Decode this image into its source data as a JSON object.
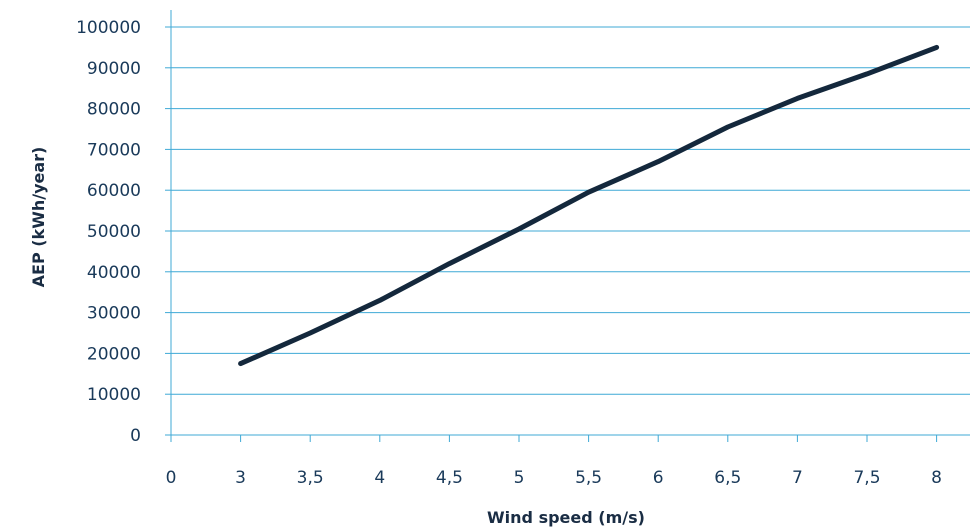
{
  "chart_data": {
    "type": "line",
    "title": "",
    "xlabel": "Wind speed (m/s)",
    "ylabel": "AEP (kWh/year)",
    "categories": [
      "0",
      "3",
      "3,5",
      "4",
      "4,5",
      "5",
      "5,5",
      "6",
      "6,5",
      "7",
      "7,5",
      "8"
    ],
    "yticks": [
      "0",
      "10000",
      "20000",
      "30000",
      "40000",
      "50000",
      "60000",
      "70000",
      "80000",
      "90000",
      "100000"
    ],
    "ylim": [
      0,
      100000
    ],
    "grid": true,
    "series": [
      {
        "x": [
          3,
          3.5,
          4,
          4.5,
          5,
          5.5,
          6,
          6.5,
          7,
          7.5,
          8
        ],
        "values": [
          17500,
          25000,
          33000,
          42000,
          50500,
          59500,
          67000,
          75500,
          82500,
          88500,
          95000
        ],
        "color": "#14283c"
      }
    ],
    "colors": {
      "grid": "#3fa9d6",
      "text": "#1a3a5a",
      "title": "#1a2d44"
    }
  }
}
